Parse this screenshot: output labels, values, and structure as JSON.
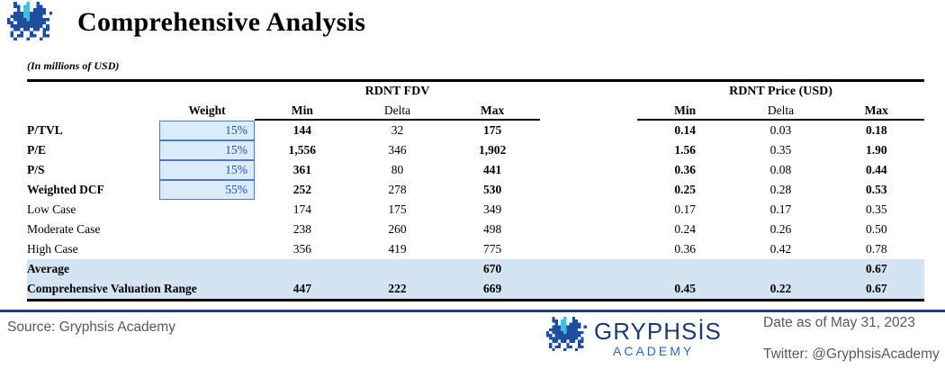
{
  "header": {
    "title": "Comprehensive Analysis",
    "subtitle": "(In millions of USD)"
  },
  "table": {
    "group_headers": [
      "RDNT FDV",
      "RDNT Price (USD)"
    ],
    "col_headers": {
      "weight": "Weight",
      "min": "Min",
      "delta": "Delta",
      "max": "Max",
      "min2": "Min",
      "delta2": "Delta",
      "max2": "Max"
    },
    "rows": [
      {
        "label": "P/TVL",
        "weight": "15%",
        "fdv_min": "144",
        "fdv_delta": "32",
        "fdv_max": "175",
        "price_min": "0.14",
        "price_delta": "0.03",
        "price_max": "0.18"
      },
      {
        "label": "P/E",
        "weight": "15%",
        "fdv_min": "1,556",
        "fdv_delta": "346",
        "fdv_max": "1,902",
        "price_min": "1.56",
        "price_delta": "0.35",
        "price_max": "1.90"
      },
      {
        "label": "P/S",
        "weight": "15%",
        "fdv_min": "361",
        "fdv_delta": "80",
        "fdv_max": "441",
        "price_min": "0.36",
        "price_delta": "0.08",
        "price_max": "0.44"
      },
      {
        "label": "Weighted DCF",
        "weight": "55%",
        "fdv_min": "252",
        "fdv_delta": "278",
        "fdv_max": "530",
        "price_min": "0.25",
        "price_delta": "0.28",
        "price_max": "0.53"
      },
      {
        "label": "Low Case",
        "fdv_min": "174",
        "fdv_delta": "175",
        "fdv_max": "349",
        "price_min": "0.17",
        "price_delta": "0.17",
        "price_max": "0.35"
      },
      {
        "label": "Moderate Case",
        "fdv_min": "238",
        "fdv_delta": "260",
        "fdv_max": "498",
        "price_min": "0.24",
        "price_delta": "0.26",
        "price_max": "0.50"
      },
      {
        "label": "High Case",
        "fdv_min": "356",
        "fdv_delta": "419",
        "fdv_max": "775",
        "price_min": "0.36",
        "price_delta": "0.42",
        "price_max": "0.78"
      },
      {
        "label": "Average",
        "fdv_max": "670",
        "price_max": "0.67"
      },
      {
        "label": "Comprehensive Valuation Range",
        "fdv_min": "447",
        "fdv_delta": "222",
        "fdv_max": "669",
        "price_min": "0.45",
        "price_delta": "0.22",
        "price_max": "0.67"
      }
    ]
  },
  "footer": {
    "source": "Source: Gryphsis Academy",
    "brand": "GRYPHSİS",
    "brand_sub": "ACADEMY",
    "date": "Date as of May 31, 2023",
    "twitter": "Twitter: @GryphsisAcademy"
  },
  "icons": {
    "header_logo": "pixel-dragon-icon",
    "footer_logo": "pixel-dragon-icon"
  },
  "colors": {
    "weight_text": "#2050a8",
    "weight_cell_bg": "#dcebf8",
    "weight_cell_border": "#4a7cc0",
    "highlight_row_bg": "#d5e4f2",
    "footer_rule": "#233f80",
    "logo_blue": "#1e4f9e",
    "logo_cyan": "#3fc0da",
    "brand_navy": "#1e3a6e",
    "brand_blue": "#2f66ad",
    "footer_text": "#595959"
  }
}
